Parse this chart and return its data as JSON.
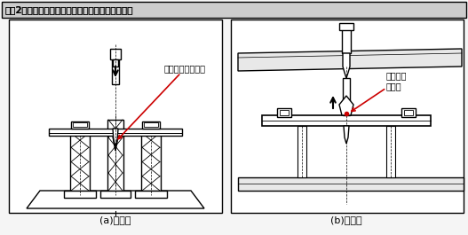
{
  "title": "【図2】薄板材の押し下げ変形、吊り上げ変形対策",
  "label_a": "(a)下降時",
  "label_b": "(b)上昇時",
  "annotation_a": "リフターで受ける",
  "annotation_b": "ガイド兼\nはがし",
  "bg_color": "#f0f0f0",
  "line_color": "#000000",
  "red_color": "#cc0000",
  "title_bg": "#d0d0d0",
  "fig_bg": "#f5f5f5"
}
